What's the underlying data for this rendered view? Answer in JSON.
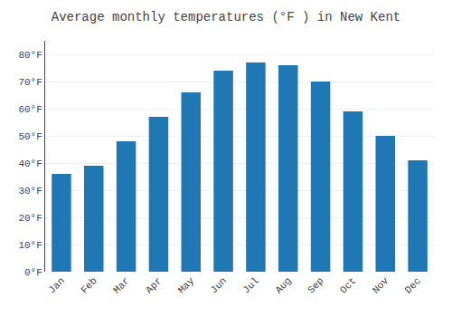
{
  "chart_data": {
    "type": "bar",
    "title": "Average monthly temperatures (°F ) in New Kent",
    "categories": [
      "Jan",
      "Feb",
      "Mar",
      "Apr",
      "May",
      "Jun",
      "Jul",
      "Aug",
      "Sep",
      "Oct",
      "Nov",
      "Dec"
    ],
    "values": [
      36,
      39,
      48,
      57,
      66,
      74,
      77,
      76,
      70,
      59,
      50,
      41
    ],
    "ylim": [
      0,
      85
    ],
    "yticks": [
      {
        "value": 0,
        "label": "0°F"
      },
      {
        "value": 10,
        "label": "10°F"
      },
      {
        "value": 20,
        "label": "20°F"
      },
      {
        "value": 30,
        "label": "30°F"
      },
      {
        "value": 40,
        "label": "40°F"
      },
      {
        "value": 50,
        "label": "50°F"
      },
      {
        "value": 60,
        "label": "60°F"
      },
      {
        "value": 70,
        "label": "70°F"
      },
      {
        "value": 80,
        "label": "80°F"
      }
    ],
    "grid": true
  }
}
